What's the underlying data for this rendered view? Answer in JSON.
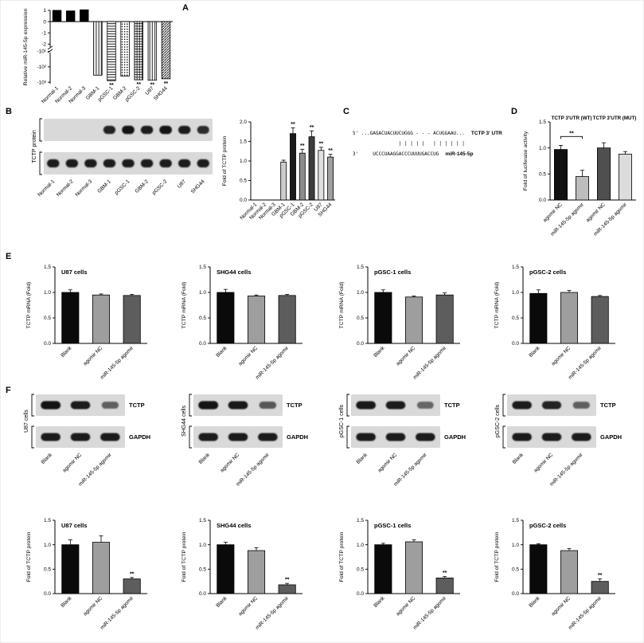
{
  "panel_letters": {
    "A": "A",
    "B": "B",
    "C": "C",
    "D": "D",
    "E": "E",
    "F": "F"
  },
  "panelC": {
    "line1": {
      "seq": "5' ...GAGACUACUUCUGGG - - - ACUGGAAU...",
      "label": "TCTP 3' UTR"
    },
    "line2": {
      "seq": "                | | | | |   | | | | | |"
    },
    "line3": {
      "seq": "3'     UCCCUAAGGACCCUUUUGACCUG",
      "label": "miR-145-5p"
    }
  },
  "chart_data": [
    {
      "id": "A",
      "type": "bar",
      "ylabel": "Relative miR-145-5p expression",
      "scale": "broken_neg_log",
      "ylim": [
        -1000,
        1
      ],
      "yticks": [
        1,
        0,
        -1,
        -2,
        -10,
        -100,
        -1000
      ],
      "ytick_labels": [
        "1",
        "0",
        "-1",
        "-2",
        "-10¹",
        "-10²",
        "-10³"
      ],
      "categories": [
        "Normal-1",
        "Normal-2",
        "Normal-3",
        "GBM-1",
        "pGSC-1",
        "GBM-2",
        "pGSC-2",
        "U87",
        "SHG44"
      ],
      "values": [
        1,
        0.95,
        1.05,
        -350,
        -800,
        -400,
        -700,
        -750,
        -600
      ],
      "errors": [
        0,
        0,
        0,
        0,
        0,
        0,
        0,
        0,
        0
      ],
      "sig": [
        "",
        "",
        "",
        "",
        "**",
        "",
        "**",
        "**",
        "**"
      ],
      "colors": [
        "#000000",
        "#000000",
        "#000000",
        "pat-vlines",
        "pat-hlines",
        "pat-dots",
        "pat-grid",
        "pat-vlines",
        "pat-diag"
      ],
      "bar_frac": 0.62
    },
    {
      "id": "B",
      "type": "bar",
      "ylabel": "Fold of TCTP protein",
      "ylim": [
        0,
        2
      ],
      "yticks": [
        0,
        0.5,
        1,
        1.5,
        2
      ],
      "ytick_labels": [
        "0.0",
        "0.5",
        "1.0",
        "1.5",
        "2.0"
      ],
      "categories": [
        "Normal-1",
        "Normal-2",
        "Normal-3",
        "GBM-1",
        "pGSC-1",
        "GBM-2",
        "pGSC-2",
        "U87",
        "SHG44"
      ],
      "values": [
        0,
        0,
        0,
        0.97,
        1.7,
        1.2,
        1.62,
        1.27,
        1.1
      ],
      "errors": [
        0,
        0,
        0,
        0.05,
        0.15,
        0.1,
        0.15,
        0.08,
        0.07
      ],
      "sig": [
        "",
        "",
        "",
        "",
        "**",
        "**",
        "**",
        "**",
        "**"
      ],
      "colors": [
        "#000000",
        "#000000",
        "#000000",
        "#cccccc",
        "#1a1a1a",
        "#8c8c8c",
        "#3d3d3d",
        "#e0e0e0",
        "#a0a0a0"
      ],
      "bar_frac": 0.6
    },
    {
      "id": "D",
      "type": "bar",
      "ylabel": "Fold of luciferase activity",
      "ylim": [
        0,
        1.5
      ],
      "yticks": [
        0,
        0.5,
        1,
        1.5
      ],
      "ytick_labels": [
        "0.0",
        "0.5",
        "1.0",
        "1.5"
      ],
      "categories": [
        "agomir NC",
        "miR-145-5p agomir",
        "agomir NC",
        "miR-145-5p agomir"
      ],
      "values": [
        0.97,
        0.45,
        1.0,
        0.88
      ],
      "errors": [
        0.08,
        0.12,
        0.1,
        0.05
      ],
      "sig": [
        "",
        "",
        "",
        ""
      ],
      "colors": [
        "#111111",
        "#bdbdbd",
        "#4f4f4f",
        "#dcdcdc"
      ],
      "groups": [
        {
          "label": "TCTP 3'UTR (WT)",
          "from": 0,
          "to": 1
        },
        {
          "label": "TCTP 3'UTR (MUT)",
          "from": 2,
          "to": 3
        }
      ],
      "bracket": {
        "from": 0,
        "to": 1,
        "y": 1.22,
        "label": "**"
      },
      "bar_frac": 0.6
    },
    {
      "id": "E-U87",
      "type": "bar",
      "title": "U87 cells",
      "ylabel": "TCTP mRNA (Fold)",
      "ylim": [
        0,
        1.5
      ],
      "yticks": [
        0,
        0.5,
        1,
        1.5
      ],
      "ytick_labels": [
        "0.0",
        "0.5",
        "1.0",
        "1.5"
      ],
      "categories": [
        "Blank",
        "agomir NC",
        "miR-145-5p agomir"
      ],
      "values": [
        1.0,
        0.95,
        0.94
      ],
      "errors": [
        0.05,
        0.02,
        0.02
      ],
      "sig": [
        "",
        "",
        ""
      ],
      "colors": [
        "#0a0a0a",
        "#9e9e9e",
        "#5d5d5d"
      ],
      "bar_frac": 0.55
    },
    {
      "id": "E-SHG44",
      "type": "bar",
      "title": "SHG44 cells",
      "ylabel": "TCTP mRNA (Fold)",
      "ylim": [
        0,
        1.5
      ],
      "yticks": [
        0,
        0.5,
        1,
        1.5
      ],
      "ytick_labels": [
        "0.0",
        "0.5",
        "1.0",
        "1.5"
      ],
      "categories": [
        "Blank",
        "agomir NC",
        "miR-145-5p agomir"
      ],
      "values": [
        1.0,
        0.93,
        0.94
      ],
      "errors": [
        0.06,
        0.02,
        0.02
      ],
      "sig": [
        "",
        "",
        ""
      ],
      "colors": [
        "#0a0a0a",
        "#9e9e9e",
        "#5d5d5d"
      ],
      "bar_frac": 0.55
    },
    {
      "id": "E-pGSC-1",
      "type": "bar",
      "title": "pGSC-1 cells",
      "ylabel": "TCTP mRNA (Fold)",
      "ylim": [
        0,
        1.5
      ],
      "yticks": [
        0,
        0.5,
        1,
        1.5
      ],
      "ytick_labels": [
        "0.0",
        "0.5",
        "1.0",
        "1.5"
      ],
      "categories": [
        "Blank",
        "agomir NC",
        "miR-145-5p agomir"
      ],
      "values": [
        1.0,
        0.91,
        0.95
      ],
      "errors": [
        0.05,
        0.02,
        0.04
      ],
      "sig": [
        "",
        "",
        ""
      ],
      "colors": [
        "#0a0a0a",
        "#9e9e9e",
        "#5d5d5d"
      ],
      "bar_frac": 0.55
    },
    {
      "id": "E-pGSC-2",
      "type": "bar",
      "title": "pGSC-2 cells",
      "ylabel": "TCTP mRNA (Fold)",
      "ylim": [
        0,
        1.5
      ],
      "yticks": [
        0,
        0.5,
        1,
        1.5
      ],
      "ytick_labels": [
        "0.0",
        "0.5",
        "1.0",
        "1.5"
      ],
      "categories": [
        "Blank",
        "agomir NC",
        "miR-145-5p agomir"
      ],
      "values": [
        0.98,
        1.0,
        0.92
      ],
      "errors": [
        0.07,
        0.04,
        0.02
      ],
      "sig": [
        "",
        "",
        ""
      ],
      "colors": [
        "#0a0a0a",
        "#9e9e9e",
        "#5d5d5d"
      ],
      "bar_frac": 0.55
    },
    {
      "id": "F-U87",
      "type": "bar",
      "title": "U87 cells",
      "ylabel": "Fold of TCTP protein",
      "ylim": [
        0,
        1.5
      ],
      "yticks": [
        0,
        0.5,
        1,
        1.5
      ],
      "ytick_labels": [
        "0.0",
        "0.5",
        "1.0",
        "1.5"
      ],
      "categories": [
        "Blank",
        "agomir NC",
        "miR-145-5p agomir"
      ],
      "values": [
        1.0,
        1.05,
        0.3
      ],
      "errors": [
        0.1,
        0.13,
        0.03
      ],
      "sig": [
        "",
        "",
        "**"
      ],
      "colors": [
        "#0a0a0a",
        "#9e9e9e",
        "#5d5d5d"
      ],
      "bar_frac": 0.55
    },
    {
      "id": "F-SHG44",
      "type": "bar",
      "title": "SHG44 cells",
      "ylabel": "Fold of TCTP protein",
      "ylim": [
        0,
        1.5
      ],
      "yticks": [
        0,
        0.5,
        1,
        1.5
      ],
      "ytick_labels": [
        "0.0",
        "0.5",
        "1.0",
        "1.5"
      ],
      "categories": [
        "Blank",
        "agomir NC",
        "miR-145-5p agomir"
      ],
      "values": [
        1.0,
        0.88,
        0.18
      ],
      "errors": [
        0.05,
        0.06,
        0.03
      ],
      "sig": [
        "",
        "",
        "**"
      ],
      "colors": [
        "#0a0a0a",
        "#9e9e9e",
        "#5d5d5d"
      ],
      "bar_frac": 0.55
    },
    {
      "id": "F-pGSC-1",
      "type": "bar",
      "title": "pGSC-1 cells",
      "ylabel": "Fold of TCTP protein",
      "ylim": [
        0,
        1.5
      ],
      "yticks": [
        0,
        0.5,
        1,
        1.5
      ],
      "ytick_labels": [
        "0.0",
        "0.5",
        "1.0",
        "1.5"
      ],
      "categories": [
        "Blank",
        "agomir NC",
        "miR-145-5p agomir"
      ],
      "values": [
        1.0,
        1.06,
        0.32
      ],
      "errors": [
        0.03,
        0.04,
        0.03
      ],
      "sig": [
        "",
        "",
        "**"
      ],
      "colors": [
        "#0a0a0a",
        "#9e9e9e",
        "#5d5d5d"
      ],
      "bar_frac": 0.55
    },
    {
      "id": "F-pGSC-2",
      "type": "bar",
      "title": "pGSC-2 cells",
      "ylabel": "Fold of TCTP protein",
      "ylim": [
        0,
        1.5
      ],
      "yticks": [
        0,
        0.5,
        1,
        1.5
      ],
      "ytick_labels": [
        "0.0",
        "0.5",
        "1.0",
        "1.5"
      ],
      "categories": [
        "Blank",
        "agomir NC",
        "miR-145-5p agomir"
      ],
      "values": [
        1.0,
        0.88,
        0.25
      ],
      "errors": [
        0.02,
        0.04,
        0.05
      ],
      "sig": [
        "",
        "",
        "**"
      ],
      "colors": [
        "#0a0a0a",
        "#9e9e9e",
        "#5d5d5d"
      ],
      "bar_frac": 0.55
    }
  ],
  "blots": {
    "B": {
      "left_label": "TCTP protein",
      "brackets": true,
      "lane_labels": [
        "Normal-1",
        "Normal-2",
        "Normal-3",
        "GBM-1",
        "pGSC-1",
        "GBM-2",
        "pGSC-2",
        "U87",
        "SHG44"
      ],
      "strips": [
        {
          "label": "",
          "bands": [
            0,
            0,
            0,
            0.85,
            0.95,
            0.9,
            0.95,
            0.9,
            0.8
          ]
        },
        {
          "label": "",
          "bands": [
            0.9,
            0.9,
            0.9,
            0.9,
            0.9,
            0.9,
            0.9,
            0.9,
            0.9
          ]
        }
      ]
    },
    "F_U87": {
      "left_label": "U87 cells",
      "brackets": true,
      "lane_labels": [
        "Blank",
        "agomir NC",
        "miR-145-5p agomir"
      ],
      "strips": [
        {
          "label": "TCTP",
          "bands": [
            0.95,
            0.9,
            0.45
          ]
        },
        {
          "label": "GAPDH",
          "bands": [
            0.9,
            0.9,
            0.9
          ]
        }
      ]
    },
    "F_SHG44": {
      "left_label": "SHG44 cells",
      "brackets": true,
      "lane_labels": [
        "Blank",
        "agomir NC",
        "miR-145-5p agomir"
      ],
      "strips": [
        {
          "label": "TCTP",
          "bands": [
            0.95,
            0.92,
            0.5
          ]
        },
        {
          "label": "GAPDH",
          "bands": [
            0.9,
            0.9,
            0.9
          ]
        }
      ]
    },
    "F_pGSC1": {
      "left_label": "pGSC-1 cells",
      "brackets": true,
      "lane_labels": [
        "Blank",
        "agomir NC",
        "miR-145-5p agomir"
      ],
      "strips": [
        {
          "label": "TCTP",
          "bands": [
            0.92,
            0.9,
            0.4
          ]
        },
        {
          "label": "GAPDH",
          "bands": [
            0.9,
            0.9,
            0.9
          ]
        }
      ]
    },
    "F_pGSC2": {
      "left_label": "pGSC-2 cells",
      "brackets": true,
      "lane_labels": [
        "Blank",
        "agomir NC",
        "miR-145-5p agomir"
      ],
      "strips": [
        {
          "label": "TCTP",
          "bands": [
            0.9,
            0.85,
            0.45
          ]
        },
        {
          "label": "GAPDH",
          "bands": [
            0.9,
            0.9,
            0.9
          ]
        }
      ]
    }
  }
}
